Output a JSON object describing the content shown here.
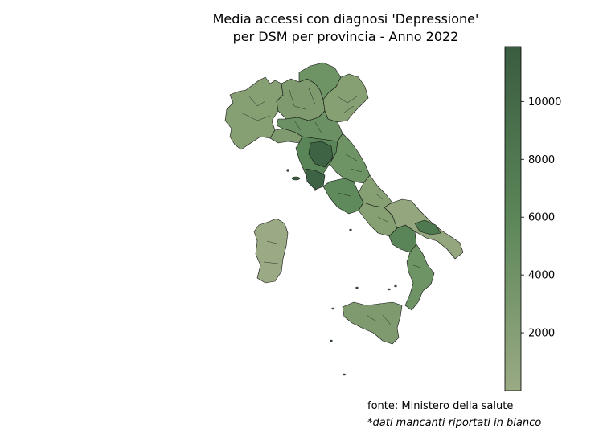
{
  "title_line_1": "Media accessi con diagnosi 'Depressione'",
  "title_line_2": "per DSM per provincia - Anno 2022",
  "source": "fonte: Ministero della salute",
  "note": "*dati mancanti riportati in bianco",
  "colorbar": {
    "min": 0,
    "max": 11900,
    "ticks": [
      2000,
      4000,
      6000,
      8000,
      10000
    ],
    "tick_labels": [
      "2000",
      "4000",
      "6000",
      "8000",
      "10000"
    ],
    "color_low": "#9aaa84",
    "color_mid": "#5c8659",
    "color_high": "#3a5c40"
  },
  "region_colors": {
    "low": "#93a67e",
    "mid_low": "#86a074",
    "mid": "#6e9466",
    "mid_high": "#5a8558",
    "high": "#3e6344",
    "missing": "#ffffff"
  }
}
